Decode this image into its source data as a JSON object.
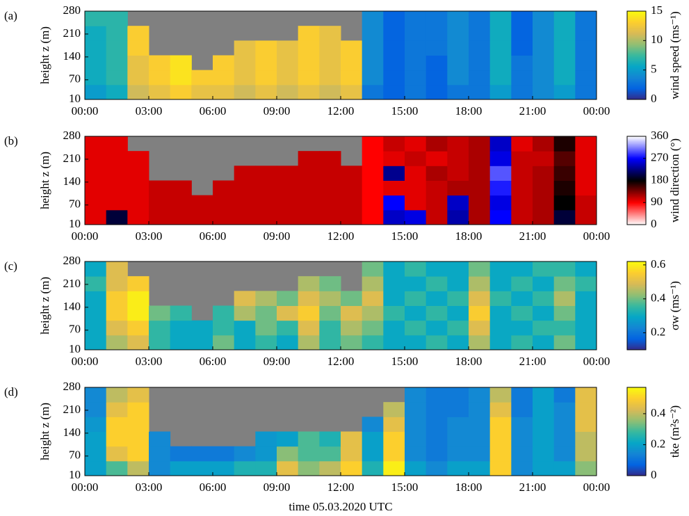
{
  "chart_data": [
    {
      "type": "heatmap",
      "label": "(a)",
      "ylabel": "height z (m)",
      "cbar_label": "wind speed (ms⁻¹)",
      "xbins": [
        0,
        1,
        2,
        3,
        4,
        5,
        6,
        7,
        8,
        9,
        10,
        11,
        12,
        13,
        14,
        15,
        16,
        17,
        18,
        19,
        20,
        21,
        22,
        23,
        24
      ],
      "ybins": [
        10,
        55,
        100,
        145,
        190,
        235,
        280
      ],
      "xlim": [
        0,
        24
      ],
      "ylim": [
        10,
        280
      ],
      "xticks": [
        {
          "value": 0,
          "label": "00:00"
        },
        {
          "value": 3,
          "label": "03:00"
        },
        {
          "value": 6,
          "label": "06:00"
        },
        {
          "value": 9,
          "label": "09:00"
        },
        {
          "value": 12,
          "label": "12:00"
        },
        {
          "value": 15,
          "label": "15:00"
        },
        {
          "value": 18,
          "label": "18:00"
        },
        {
          "value": 21,
          "label": "21:00"
        },
        {
          "value": 24,
          "label": "00:00"
        }
      ],
      "yticks": [
        10,
        70,
        140,
        210,
        280
      ],
      "clim": [
        0,
        15
      ],
      "cticks": [
        0,
        5,
        10,
        15
      ],
      "colormap": [
        "#352a87",
        "#0363e1",
        "#1485d4",
        "#06a7c6",
        "#38b99e",
        "#92bf73",
        "#d9ba56",
        "#fcce2e",
        "#f9fb0e"
      ],
      "nodata_color": "#808080",
      "z": [
        [
          5,
          6,
          11,
          12,
          13,
          12,
          12,
          11,
          12,
          11,
          12,
          11,
          12,
          3,
          2,
          3,
          2,
          3,
          3,
          5,
          3,
          4,
          5,
          3
        ],
        [
          6,
          7,
          12,
          13,
          14,
          13,
          13,
          12,
          13,
          12,
          13,
          12,
          13,
          4,
          2,
          3,
          2,
          4,
          3,
          6,
          3,
          4,
          6,
          3
        ],
        [
          6,
          7,
          12,
          13,
          14,
          null,
          13,
          12,
          13,
          12,
          13,
          12,
          13,
          4,
          2,
          3,
          2,
          4,
          3,
          6,
          3,
          4,
          6,
          3
        ],
        [
          6,
          7,
          13,
          null,
          null,
          null,
          null,
          12,
          13,
          12,
          13,
          12,
          13,
          4,
          2,
          3,
          3,
          4,
          3,
          6,
          2,
          4,
          6,
          3
        ],
        [
          6,
          7,
          13,
          null,
          null,
          null,
          null,
          null,
          null,
          null,
          13,
          12,
          null,
          4,
          2,
          3,
          3,
          4,
          3,
          6,
          2,
          4,
          6,
          3
        ],
        [
          7,
          7,
          null,
          null,
          null,
          null,
          null,
          null,
          null,
          null,
          null,
          null,
          null,
          4,
          2,
          3,
          3,
          4,
          3,
          6,
          2,
          4,
          6,
          3
        ]
      ]
    },
    {
      "type": "heatmap",
      "label": "(b)",
      "ylabel": "height z (m)",
      "cbar_label": "wind direction (°)",
      "xbins": [
        0,
        1,
        2,
        3,
        4,
        5,
        6,
        7,
        8,
        9,
        10,
        11,
        12,
        13,
        14,
        15,
        16,
        17,
        18,
        19,
        20,
        21,
        22,
        23,
        24
      ],
      "ybins": [
        10,
        55,
        100,
        145,
        190,
        235,
        280
      ],
      "xlim": [
        0,
        24
      ],
      "ylim": [
        10,
        280
      ],
      "xticks": [
        {
          "value": 0,
          "label": "00:00"
        },
        {
          "value": 3,
          "label": "03:00"
        },
        {
          "value": 6,
          "label": "06:00"
        },
        {
          "value": 9,
          "label": "09:00"
        },
        {
          "value": 12,
          "label": "12:00"
        },
        {
          "value": 15,
          "label": "15:00"
        },
        {
          "value": 18,
          "label": "18:00"
        },
        {
          "value": 21,
          "label": "21:00"
        },
        {
          "value": 24,
          "label": "00:00"
        }
      ],
      "yticks": [
        10,
        70,
        140,
        210,
        280
      ],
      "clim": [
        0,
        360
      ],
      "cticks": [
        0,
        90,
        180,
        270,
        360
      ],
      "colormap": [
        "#ffffff",
        "#ff0000",
        "#000000",
        "#0000ff",
        "#ffffff"
      ],
      "nodata_color": "#808080",
      "z": [
        [
          100,
          200,
          100,
          110,
          110,
          110,
          110,
          110,
          110,
          110,
          110,
          110,
          110,
          90,
          250,
          260,
          110,
          240,
          120,
          270,
          110,
          120,
          200,
          110
        ],
        [
          100,
          100,
          100,
          110,
          110,
          110,
          110,
          110,
          110,
          110,
          110,
          110,
          110,
          90,
          270,
          100,
          110,
          250,
          120,
          260,
          110,
          120,
          180,
          110
        ],
        [
          100,
          100,
          100,
          110,
          110,
          null,
          110,
          110,
          110,
          110,
          110,
          110,
          110,
          90,
          100,
          100,
          110,
          120,
          120,
          280,
          110,
          120,
          170,
          100
        ],
        [
          100,
          100,
          100,
          null,
          null,
          null,
          null,
          110,
          110,
          110,
          110,
          110,
          110,
          90,
          230,
          100,
          120,
          110,
          120,
          300,
          110,
          120,
          160,
          100
        ],
        [
          100,
          100,
          100,
          null,
          null,
          null,
          null,
          null,
          null,
          null,
          110,
          110,
          null,
          90,
          100,
          110,
          100,
          110,
          120,
          260,
          110,
          110,
          150,
          100
        ],
        [
          100,
          100,
          null,
          null,
          null,
          null,
          null,
          null,
          null,
          null,
          null,
          null,
          null,
          90,
          110,
          100,
          120,
          110,
          120,
          250,
          100,
          120,
          170,
          100
        ]
      ]
    },
    {
      "type": "heatmap",
      "label": "(c)",
      "ylabel": "height z (m)",
      "cbar_label": "σw (ms⁻¹)",
      "xbins": [
        0,
        1,
        2,
        3,
        4,
        5,
        6,
        7,
        8,
        9,
        10,
        11,
        12,
        13,
        14,
        15,
        16,
        17,
        18,
        19,
        20,
        21,
        22,
        23,
        24
      ],
      "ybins": [
        10,
        55,
        100,
        145,
        190,
        235,
        280
      ],
      "xlim": [
        0,
        24
      ],
      "ylim": [
        10,
        280
      ],
      "xticks": [
        {
          "value": 0,
          "label": "00:00"
        },
        {
          "value": 3,
          "label": "03:00"
        },
        {
          "value": 6,
          "label": "06:00"
        },
        {
          "value": 9,
          "label": "09:00"
        },
        {
          "value": 12,
          "label": "12:00"
        },
        {
          "value": 15,
          "label": "15:00"
        },
        {
          "value": 18,
          "label": "18:00"
        },
        {
          "value": 21,
          "label": "21:00"
        },
        {
          "value": 24,
          "label": "00:00"
        }
      ],
      "yticks": [
        10,
        70,
        140,
        210,
        280
      ],
      "clim": [
        0.1,
        0.62
      ],
      "cticks": [
        0.2,
        0.4,
        0.6
      ],
      "colormap": [
        "#352a87",
        "#0363e1",
        "#1485d4",
        "#06a7c6",
        "#38b99e",
        "#92bf73",
        "#d9ba56",
        "#fcce2e",
        "#f9fb0e"
      ],
      "nodata_color": "#808080",
      "z": [
        [
          0.3,
          0.45,
          0.5,
          0.35,
          0.3,
          0.3,
          0.4,
          0.3,
          0.35,
          0.3,
          0.45,
          0.35,
          0.4,
          0.35,
          0.3,
          0.3,
          0.35,
          0.3,
          0.45,
          0.3,
          0.35,
          0.3,
          0.4,
          0.3
        ],
        [
          0.3,
          0.5,
          0.55,
          0.35,
          0.3,
          0.3,
          0.35,
          0.3,
          0.4,
          0.35,
          0.5,
          0.35,
          0.45,
          0.4,
          0.3,
          0.35,
          0.3,
          0.35,
          0.5,
          0.3,
          0.3,
          0.35,
          0.35,
          0.3
        ],
        [
          0.3,
          0.55,
          0.6,
          0.4,
          0.35,
          null,
          0.35,
          0.45,
          0.4,
          0.5,
          0.55,
          0.4,
          0.5,
          0.45,
          0.35,
          0.3,
          0.35,
          0.3,
          0.55,
          0.3,
          0.35,
          0.3,
          0.4,
          0.3
        ],
        [
          0.3,
          0.55,
          0.6,
          null,
          null,
          null,
          null,
          0.5,
          0.45,
          0.4,
          0.5,
          0.45,
          0.4,
          0.5,
          0.3,
          0.35,
          0.3,
          0.35,
          0.5,
          0.35,
          0.3,
          0.35,
          0.45,
          0.3
        ],
        [
          0.35,
          0.5,
          0.55,
          null,
          null,
          null,
          null,
          null,
          null,
          null,
          0.45,
          0.4,
          null,
          0.45,
          0.3,
          0.3,
          0.35,
          0.3,
          0.45,
          0.3,
          0.35,
          0.3,
          0.4,
          0.35
        ],
        [
          0.3,
          0.5,
          null,
          null,
          null,
          null,
          null,
          null,
          null,
          null,
          null,
          null,
          null,
          0.4,
          0.3,
          0.35,
          0.3,
          0.3,
          0.4,
          0.3,
          0.3,
          0.35,
          0.35,
          0.3
        ]
      ]
    },
    {
      "type": "heatmap",
      "label": "(d)",
      "ylabel": "height z (m)",
      "cbar_label": "tke (m²s⁻²)",
      "xlabel": "time 05.03.2020 UTC",
      "xbins": [
        0,
        1,
        2,
        3,
        4,
        5,
        6,
        7,
        8,
        9,
        10,
        11,
        12,
        13,
        14,
        15,
        16,
        17,
        18,
        19,
        20,
        21,
        22,
        23,
        24
      ],
      "ybins": [
        10,
        55,
        100,
        145,
        190,
        235,
        280
      ],
      "xlim": [
        0,
        24
      ],
      "ylim": [
        10,
        280
      ],
      "xticks": [
        {
          "value": 0,
          "label": "00:00"
        },
        {
          "value": 3,
          "label": "03:00"
        },
        {
          "value": 6,
          "label": "06:00"
        },
        {
          "value": 9,
          "label": "09:00"
        },
        {
          "value": 12,
          "label": "12:00"
        },
        {
          "value": 15,
          "label": "15:00"
        },
        {
          "value": 18,
          "label": "18:00"
        },
        {
          "value": 21,
          "label": "21:00"
        },
        {
          "value": 24,
          "label": "00:00"
        }
      ],
      "yticks": [
        10,
        70,
        140,
        210,
        280
      ],
      "clim": [
        0,
        0.57
      ],
      "cticks": [
        0,
        0.2,
        0.4
      ],
      "colormap": [
        "#352a87",
        "#0363e1",
        "#1485d4",
        "#06a7c6",
        "#38b99e",
        "#92bf73",
        "#d9ba56",
        "#fcce2e",
        "#f9fb0e"
      ],
      "nodata_color": "#808080",
      "z": [
        [
          0.2,
          0.3,
          0.4,
          0.15,
          0.2,
          0.2,
          0.2,
          0.25,
          0.25,
          0.45,
          0.35,
          0.4,
          0.5,
          0.25,
          0.55,
          0.2,
          0.15,
          0.2,
          0.2,
          0.5,
          0.15,
          0.2,
          0.2,
          0.35
        ],
        [
          0.2,
          0.45,
          0.5,
          0.15,
          0.12,
          0.12,
          0.12,
          0.15,
          0.18,
          0.35,
          0.3,
          0.3,
          0.45,
          0.2,
          0.5,
          0.15,
          0.12,
          0.15,
          0.15,
          0.5,
          0.15,
          0.2,
          0.15,
          0.4
        ],
        [
          0.2,
          0.5,
          0.5,
          0.15,
          null,
          null,
          null,
          null,
          0.18,
          0.2,
          0.3,
          0.25,
          0.45,
          0.2,
          0.5,
          0.15,
          0.12,
          0.15,
          0.15,
          0.5,
          0.15,
          0.2,
          0.15,
          0.4
        ],
        [
          0.18,
          0.5,
          0.5,
          null,
          null,
          null,
          null,
          null,
          null,
          null,
          null,
          null,
          null,
          0.15,
          0.45,
          0.15,
          0.12,
          0.15,
          0.15,
          0.5,
          0.15,
          0.2,
          0.15,
          0.45
        ],
        [
          0.15,
          0.45,
          0.5,
          null,
          null,
          null,
          null,
          null,
          null,
          null,
          null,
          null,
          null,
          null,
          0.4,
          0.15,
          0.12,
          0.12,
          0.15,
          0.45,
          0.12,
          0.2,
          0.15,
          0.45
        ],
        [
          0.15,
          0.4,
          0.45,
          null,
          null,
          null,
          null,
          null,
          null,
          null,
          null,
          null,
          null,
          null,
          null,
          0.15,
          0.12,
          0.12,
          0.15,
          0.4,
          0.12,
          0.2,
          0.12,
          0.45
        ]
      ]
    }
  ]
}
